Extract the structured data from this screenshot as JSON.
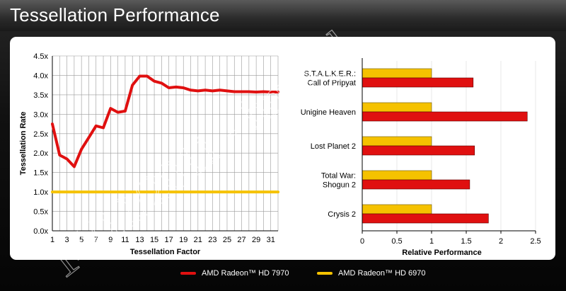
{
  "slide": {
    "title": "Tessellation Performance",
    "watermark": "14/12/2011 - hm4.pl"
  },
  "colors": {
    "hd7970": "#e01010",
    "hd6970": "#f5c200",
    "panel_bg": "#ffffff",
    "title_text": "#ffffff"
  },
  "legend": {
    "items": [
      {
        "label": "AMD Radeon™ HD 7970",
        "color": "#e01010"
      },
      {
        "label": "AMD Radeon™ HD 6970",
        "color": "#f5c200"
      }
    ]
  },
  "chart_data": [
    {
      "type": "line",
      "xlabel": "Tessellation Factor",
      "ylabel": "Tessellation Rate",
      "xlim": [
        1,
        32
      ],
      "ylim": [
        0,
        4.5
      ],
      "grid": true,
      "x_ticks": [
        "1",
        "3",
        "5",
        "7",
        "9",
        "11",
        "13",
        "15",
        "17",
        "19",
        "21",
        "23",
        "25",
        "27",
        "29",
        "31"
      ],
      "y_ticks": [
        "0.0x",
        "0.5x",
        "1.0x",
        "1.5x",
        "2.0x",
        "2.5x",
        "3.0x",
        "3.5x",
        "4.0x",
        "4.5x"
      ],
      "series": [
        {
          "name": "AMD Radeon™ HD 7970",
          "color": "#e01010",
          "x": [
            1,
            2,
            3,
            4,
            5,
            6,
            7,
            8,
            9,
            10,
            11,
            12,
            13,
            14,
            15,
            16,
            17,
            18,
            19,
            20,
            21,
            22,
            23,
            24,
            25,
            26,
            27,
            28,
            29,
            30,
            31,
            32
          ],
          "y": [
            2.75,
            1.95,
            1.85,
            1.65,
            2.1,
            2.4,
            2.7,
            2.65,
            3.15,
            3.05,
            3.08,
            3.75,
            3.98,
            3.98,
            3.85,
            3.8,
            3.68,
            3.7,
            3.68,
            3.62,
            3.6,
            3.62,
            3.6,
            3.62,
            3.6,
            3.58,
            3.58,
            3.58,
            3.57,
            3.58,
            3.57,
            3.57
          ]
        },
        {
          "name": "AMD Radeon™ HD 6970",
          "color": "#f5c200",
          "x": [
            1,
            32
          ],
          "y": [
            1.0,
            1.0
          ]
        }
      ]
    },
    {
      "type": "bar",
      "orientation": "horizontal",
      "xlabel": "Relative Performance",
      "xlim": [
        0,
        2.5
      ],
      "x_ticks": [
        "0",
        "0.5",
        "1",
        "1.5",
        "2",
        "2.5"
      ],
      "categories": [
        [
          "S.T.A.L.K.E.R.:",
          "Call of Pripyat"
        ],
        [
          "Unigine Heaven"
        ],
        [
          "Lost Planet 2"
        ],
        [
          "Total War:",
          "Shogun 2"
        ],
        [
          "Crysis 2"
        ]
      ],
      "series": [
        {
          "name": "AMD Radeon™ HD 6970",
          "color": "#f5c200",
          "values": [
            1.0,
            1.0,
            1.0,
            1.0,
            1.0
          ]
        },
        {
          "name": "AMD Radeon™ HD 7970",
          "color": "#e01010",
          "values": [
            1.6,
            2.38,
            1.62,
            1.55,
            1.82
          ]
        }
      ]
    }
  ]
}
